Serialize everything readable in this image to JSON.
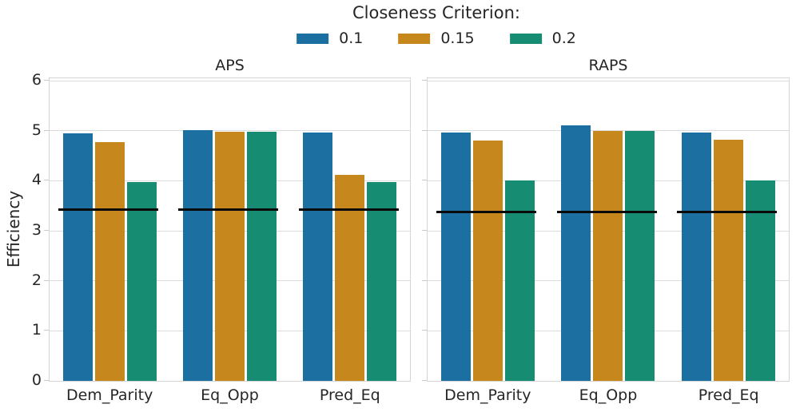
{
  "legend": {
    "title": "Closeness Criterion:",
    "entries": [
      {
        "label": "0.1",
        "color": "#1C6FA1"
      },
      {
        "label": "0.15",
        "color": "#C6871D"
      },
      {
        "label": "0.2",
        "color": "#168C72"
      }
    ]
  },
  "chart_data": [
    {
      "type": "bar",
      "title": "APS",
      "ylabel": "Efficiency",
      "categories": [
        "Dem_Parity",
        "Eq_Opp",
        "Pred_Eq"
      ],
      "series": [
        {
          "name": "0.1",
          "color": "#1C6FA1",
          "values": [
            4.95,
            5.02,
            4.96
          ]
        },
        {
          "name": "0.15",
          "color": "#C6871D",
          "values": [
            4.77,
            4.98,
            4.12
          ]
        },
        {
          "name": "0.2",
          "color": "#168C72",
          "values": [
            3.98,
            4.98,
            3.98
          ]
        }
      ],
      "baseline": 3.42,
      "ylim": [
        0,
        6
      ],
      "yticks": [
        0,
        1,
        2,
        3,
        4,
        5,
        6
      ],
      "grid": true,
      "legend_position": "top-center"
    },
    {
      "type": "bar",
      "title": "RAPS",
      "ylabel": "Efficiency",
      "categories": [
        "Dem_Parity",
        "Eq_Opp",
        "Pred_Eq"
      ],
      "series": [
        {
          "name": "0.1",
          "color": "#1C6FA1",
          "values": [
            4.96,
            5.11,
            4.97
          ]
        },
        {
          "name": "0.15",
          "color": "#C6871D",
          "values": [
            4.81,
            4.99,
            4.82
          ]
        },
        {
          "name": "0.2",
          "color": "#168C72",
          "values": [
            4.01,
            4.99,
            4.0
          ]
        }
      ],
      "baseline": 3.38,
      "ylim": [
        0,
        6
      ],
      "yticks": [
        0,
        1,
        2,
        3,
        4,
        5,
        6
      ],
      "grid": true,
      "legend_position": "top-center"
    }
  ]
}
